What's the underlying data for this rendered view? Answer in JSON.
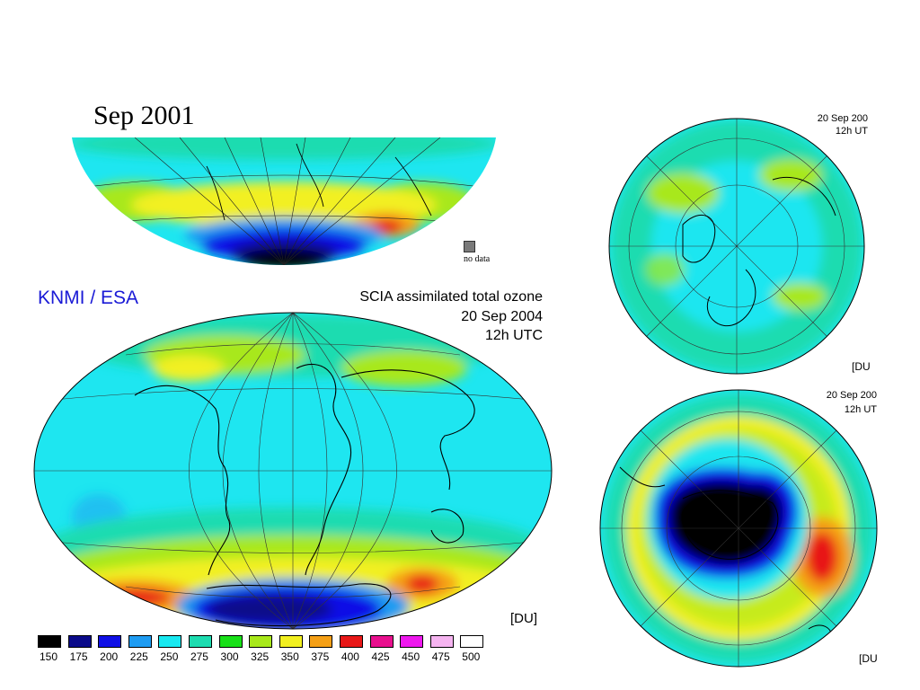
{
  "top_map": {
    "title": "Sep 2001",
    "no_data_label": "no data"
  },
  "main_map": {
    "agency": "KNMI / ESA",
    "product": "SCIA assimilated total ozone",
    "date": "20 Sep 2004",
    "time": "12h UTC",
    "unit": "[DU]"
  },
  "north_pole_map": {
    "date": "20 Sep 200",
    "time": "12h UT",
    "unit": "[DU"
  },
  "south_pole_map": {
    "date": "20 Sep 200",
    "time": "12h UT",
    "unit": "[DU"
  },
  "legend": {
    "unit": "DU",
    "items": [
      {
        "value": "150",
        "color": "#000000"
      },
      {
        "value": "175",
        "color": "#0b0b8a"
      },
      {
        "value": "200",
        "color": "#1010e6"
      },
      {
        "value": "225",
        "color": "#1e9cf2"
      },
      {
        "value": "250",
        "color": "#18e8f0"
      },
      {
        "value": "275",
        "color": "#1ddcb0"
      },
      {
        "value": "300",
        "color": "#18e018"
      },
      {
        "value": "325",
        "color": "#a8e81a"
      },
      {
        "value": "350",
        "color": "#f2f020"
      },
      {
        "value": "375",
        "color": "#f5a016"
      },
      {
        "value": "400",
        "color": "#e81818"
      },
      {
        "value": "425",
        "color": "#e8108e"
      },
      {
        "value": "450",
        "color": "#ee18ee"
      },
      {
        "value": "475",
        "color": "#f5b4f0"
      },
      {
        "value": "500",
        "color": "#ffffff"
      }
    ]
  }
}
